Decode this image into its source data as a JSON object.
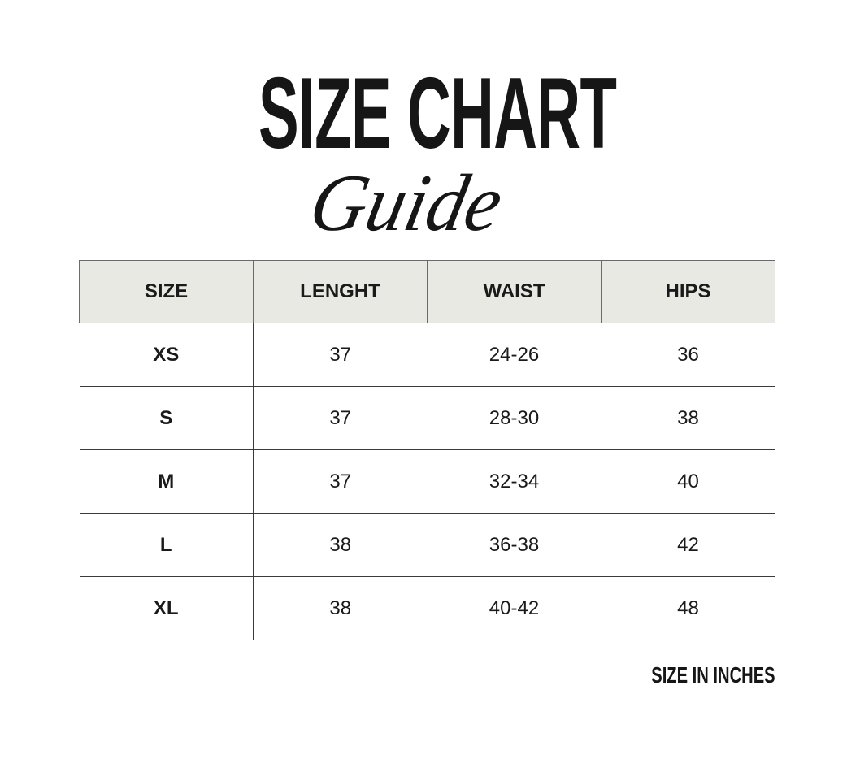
{
  "title": {
    "main": "SIZE CHART",
    "script": "Guide"
  },
  "table": {
    "headers": [
      "SIZE",
      "LENGHT",
      "WAIST",
      "HIPS"
    ],
    "rows": [
      [
        "XS",
        "37",
        "24-26",
        "36"
      ],
      [
        "S",
        "37",
        "28-30",
        "38"
      ],
      [
        "M",
        "37",
        "32-34",
        "40"
      ],
      [
        "L",
        "38",
        "36-38",
        "42"
      ],
      [
        "XL",
        "38",
        "40-42",
        "48"
      ]
    ],
    "header_bg": "#e9e9e4"
  },
  "note": "SIZE IN INCHES"
}
